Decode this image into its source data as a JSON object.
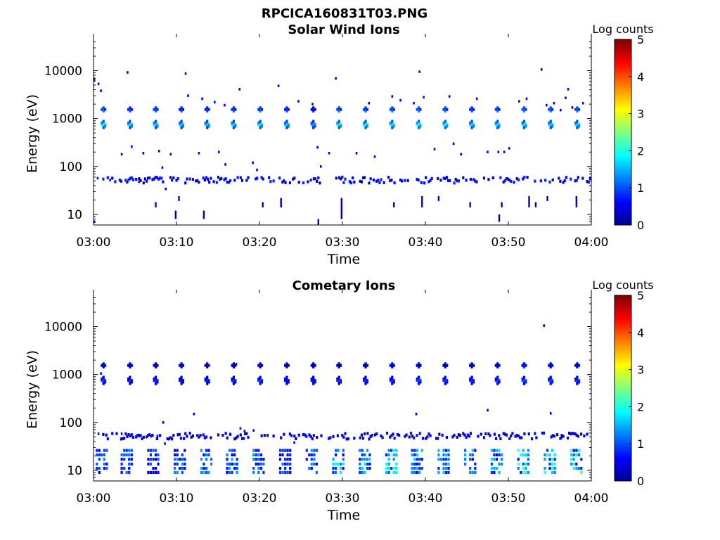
{
  "figure": {
    "title": "RPCICA160831T03.PNG"
  },
  "colorbar": {
    "colors": [
      "#00008f",
      "#0000ff",
      "#0080ff",
      "#00ffff",
      "#80ff80",
      "#ffff00",
      "#ff8000",
      "#ff0000",
      "#800000"
    ]
  },
  "chart_data": [
    {
      "type": "heatmap",
      "title": "Solar Wind Ions",
      "xlabel": "Time",
      "ylabel": "Energy (eV)",
      "x_range": [
        "03:00",
        "04:00"
      ],
      "x_ticks": [
        "03:00",
        "03:10",
        "03:20",
        "03:30",
        "03:40",
        "03:50",
        "04:00"
      ],
      "y_scale": "log",
      "y_range": [
        6,
        45000
      ],
      "y_ticks": [
        10,
        100,
        1000,
        10000
      ],
      "y_tick_labels": [
        "10",
        "100",
        "1000",
        "10000"
      ],
      "colorbar": {
        "label": "Log counts",
        "range": [
          0,
          5
        ],
        "ticks": [
          "0",
          "1",
          "2",
          "3",
          "4",
          "5"
        ]
      },
      "sweeps": [
        {
          "t": 1.2,
          "e750": 2.6,
          "e1500": 1.6
        },
        {
          "t": 4.4,
          "e750": 2.4,
          "e1500": 1.4
        },
        {
          "t": 7.5,
          "e750": 2.4,
          "e1500": 1.5
        },
        {
          "t": 10.6,
          "e750": 2.3,
          "e1500": 1.3
        },
        {
          "t": 13.7,
          "e750": 2.3,
          "e1500": 1.3
        },
        {
          "t": 16.9,
          "e750": 2.4,
          "e1500": 1.4
        },
        {
          "t": 20.1,
          "e750": 2.5,
          "e1500": 1.5
        },
        {
          "t": 23.3,
          "e750": 2.3,
          "e1500": 1.3
        },
        {
          "t": 26.5,
          "e750": 2.0,
          "e1500": 1.0
        },
        {
          "t": 29.6,
          "e750": 2.6,
          "e1500": 1.5
        },
        {
          "t": 32.8,
          "e750": 2.6,
          "e1500": 1.5
        },
        {
          "t": 36.0,
          "e750": 2.6,
          "e1500": 1.6
        },
        {
          "t": 39.2,
          "e750": 2.8,
          "e1500": 1.7
        },
        {
          "t": 42.4,
          "e750": 2.7,
          "e1500": 1.6
        },
        {
          "t": 45.6,
          "e750": 2.4,
          "e1500": 1.4
        },
        {
          "t": 48.7,
          "e750": 2.5,
          "e1500": 1.5
        },
        {
          "t": 51.9,
          "e750": 2.5,
          "e1500": 1.7
        },
        {
          "t": 55.1,
          "e750": 2.4,
          "e1500": 1.6
        },
        {
          "t": 58.3,
          "e750": 2.4,
          "e1500": 1.6
        }
      ],
      "low_energy_band": {
        "energy_ev": [
          45,
          60
        ],
        "log_counts": 0.6,
        "start_min": 1,
        "end_min": 60
      },
      "low_energy_spikes": [
        {
          "t": 7.5,
          "e": [
            14,
            18
          ]
        },
        {
          "t": 9.9,
          "e": [
            8,
            12
          ]
        },
        {
          "t": 10.3,
          "e": [
            19,
            24
          ]
        },
        {
          "t": 13.3,
          "e": [
            8,
            12
          ]
        },
        {
          "t": 20.4,
          "e": [
            14,
            18
          ]
        },
        {
          "t": 22.6,
          "e": [
            14,
            22
          ]
        },
        {
          "t": 27.1,
          "e": [
            6,
            8
          ]
        },
        {
          "t": 29.9,
          "e": [
            8,
            22
          ]
        },
        {
          "t": 36.2,
          "e": [
            14,
            18
          ]
        },
        {
          "t": 39.6,
          "e": [
            14,
            24
          ]
        },
        {
          "t": 41.6,
          "e": [
            19,
            24
          ]
        },
        {
          "t": 45.4,
          "e": [
            14,
            18
          ]
        },
        {
          "t": 48.9,
          "e": [
            7,
            10
          ]
        },
        {
          "t": 49.2,
          "e": [
            14,
            18
          ]
        },
        {
          "t": 52.5,
          "e": [
            14,
            24
          ]
        },
        {
          "t": 53.3,
          "e": [
            14,
            18
          ]
        },
        {
          "t": 54.7,
          "e": [
            19,
            24
          ]
        },
        {
          "t": 58.2,
          "e": [
            14,
            24
          ]
        }
      ],
      "scatter": [
        {
          "t": 0.1,
          "e": 6500
        },
        {
          "t": 0.6,
          "e": 5300
        },
        {
          "t": 0.9,
          "e": 3800
        },
        {
          "t": 0.1,
          "e": 7
        },
        {
          "t": 0.5,
          "e": 57
        },
        {
          "t": 2.0,
          "e": 52
        },
        {
          "t": 3.4,
          "e": 180
        },
        {
          "t": 4.1,
          "e": 9200
        },
        {
          "t": 4.6,
          "e": 260
        },
        {
          "t": 5.5,
          "e": 48
        },
        {
          "t": 6.0,
          "e": 190
        },
        {
          "t": 7.9,
          "e": 210
        },
        {
          "t": 8.3,
          "e": 95
        },
        {
          "t": 8.7,
          "e": 34
        },
        {
          "t": 9.3,
          "e": 180
        },
        {
          "t": 11.1,
          "e": 8700
        },
        {
          "t": 11.4,
          "e": 3000
        },
        {
          "t": 12.7,
          "e": 190
        },
        {
          "t": 13.1,
          "e": 2600
        },
        {
          "t": 14.6,
          "e": 2200
        },
        {
          "t": 15.8,
          "e": 1900
        },
        {
          "t": 15.1,
          "e": 200
        },
        {
          "t": 15.9,
          "e": 110
        },
        {
          "t": 17.6,
          "e": 4100
        },
        {
          "t": 19.2,
          "e": 120
        },
        {
          "t": 19.7,
          "e": 85
        },
        {
          "t": 22.3,
          "e": 4800
        },
        {
          "t": 24.7,
          "e": 2300
        },
        {
          "t": 26.4,
          "e": 2000
        },
        {
          "t": 27.0,
          "e": 250
        },
        {
          "t": 27.4,
          "e": 100
        },
        {
          "t": 28.4,
          "e": 190
        },
        {
          "t": 29.2,
          "e": 6900
        },
        {
          "t": 31.7,
          "e": 190
        },
        {
          "t": 33.2,
          "e": 2100
        },
        {
          "t": 33.9,
          "e": 160
        },
        {
          "t": 36.0,
          "e": 2900
        },
        {
          "t": 37.0,
          "e": 2400
        },
        {
          "t": 38.6,
          "e": 2100
        },
        {
          "t": 39.3,
          "e": 9500
        },
        {
          "t": 39.8,
          "e": 2800
        },
        {
          "t": 41.1,
          "e": 230
        },
        {
          "t": 42.9,
          "e": 2900
        },
        {
          "t": 43.4,
          "e": 300
        },
        {
          "t": 44.3,
          "e": 180
        },
        {
          "t": 46.2,
          "e": 2600
        },
        {
          "t": 47.5,
          "e": 200
        },
        {
          "t": 48.8,
          "e": 200
        },
        {
          "t": 49.5,
          "e": 200
        },
        {
          "t": 50.1,
          "e": 240
        },
        {
          "t": 51.3,
          "e": 2300
        },
        {
          "t": 52.2,
          "e": 2600
        },
        {
          "t": 54.0,
          "e": 10600
        },
        {
          "t": 54.6,
          "e": 1900
        },
        {
          "t": 55.5,
          "e": 2100
        },
        {
          "t": 56.3,
          "e": 1500
        },
        {
          "t": 56.9,
          "e": 2700
        },
        {
          "t": 57.2,
          "e": 4100
        },
        {
          "t": 57.7,
          "e": 1700
        },
        {
          "t": 59.0,
          "e": 2100
        }
      ]
    },
    {
      "type": "heatmap",
      "title": "Cometary Ions",
      "xlabel": "Time",
      "ylabel": "Energy (eV)",
      "x_range": [
        "03:00",
        "04:00"
      ],
      "x_ticks": [
        "03:00",
        "03:10",
        "03:20",
        "03:30",
        "03:40",
        "03:50",
        "04:00"
      ],
      "y_scale": "log",
      "y_range": [
        6,
        45000
      ],
      "y_ticks": [
        10,
        100,
        1000,
        10000
      ],
      "y_tick_labels": [
        "10",
        "100",
        "1000",
        "10000"
      ],
      "colorbar": {
        "label": "Log counts",
        "range": [
          0,
          5
        ],
        "ticks": [
          "0",
          "1",
          "2",
          "3",
          "4",
          "5"
        ]
      },
      "sweeps": [
        {
          "t": 1.2,
          "e750": 1.3,
          "e1500": 0.6
        },
        {
          "t": 4.4,
          "e750": 1.1,
          "e1500": 0.5
        },
        {
          "t": 7.5,
          "e750": 1.2,
          "e1500": 0.5
        },
        {
          "t": 10.6,
          "e750": 1.0,
          "e1500": 0.8
        },
        {
          "t": 13.7,
          "e750": 1.1,
          "e1500": 0.6
        },
        {
          "t": 16.9,
          "e750": 1.2,
          "e1500": 0.6
        },
        {
          "t": 20.1,
          "e750": 1.3,
          "e1500": 0.7
        },
        {
          "t": 23.3,
          "e750": 1.0,
          "e1500": 0.4
        },
        {
          "t": 26.5,
          "e750": 1.0,
          "e1500": 0.4
        },
        {
          "t": 29.6,
          "e750": 1.2,
          "e1500": 0.4
        },
        {
          "t": 32.8,
          "e750": 1.2,
          "e1500": 0.4
        },
        {
          "t": 36.0,
          "e750": 1.2,
          "e1500": 0.8
        },
        {
          "t": 39.2,
          "e750": 1.4,
          "e1500": 0.7
        },
        {
          "t": 42.4,
          "e750": 1.3,
          "e1500": 0.4
        },
        {
          "t": 45.6,
          "e750": 1.2,
          "e1500": 0.4
        },
        {
          "t": 48.7,
          "e750": 1.3,
          "e1500": 0.5
        },
        {
          "t": 51.9,
          "e750": 1.5,
          "e1500": 1.1
        },
        {
          "t": 55.1,
          "e750": 1.4,
          "e1500": 0.8
        },
        {
          "t": 58.3,
          "e750": 1.3,
          "e1500": 0.7
        }
      ],
      "low_energy_band": {
        "energy_ev": [
          45,
          60
        ],
        "log_counts": 0.5,
        "start_min": 1,
        "end_min": 60
      },
      "low_energy_blocks": [
        {
          "t": 1.0,
          "level": 1.0
        },
        {
          "t": 4.0,
          "level": 1.1
        },
        {
          "t": 7.2,
          "level": 0.9
        },
        {
          "t": 10.4,
          "level": 1.2
        },
        {
          "t": 13.6,
          "level": 1.3
        },
        {
          "t": 16.7,
          "level": 1.2
        },
        {
          "t": 19.9,
          "level": 1.1
        },
        {
          "t": 23.1,
          "level": 1.0
        },
        {
          "t": 26.3,
          "level": 1.2
        },
        {
          "t": 29.5,
          "level": 1.6
        },
        {
          "t": 32.7,
          "level": 1.5
        },
        {
          "t": 35.9,
          "level": 1.8
        },
        {
          "t": 39.0,
          "level": 1.4
        },
        {
          "t": 42.2,
          "level": 1.3
        },
        {
          "t": 45.4,
          "level": 1.3
        },
        {
          "t": 48.6,
          "level": 1.4
        },
        {
          "t": 51.8,
          "level": 1.9
        },
        {
          "t": 55.0,
          "level": 1.8
        },
        {
          "t": 58.2,
          "level": 1.7
        }
      ],
      "scatter": [
        {
          "t": 0.6,
          "e": 58
        },
        {
          "t": 0.9,
          "e": 1050
        },
        {
          "t": 3.4,
          "e": 58
        },
        {
          "t": 5.5,
          "e": 52
        },
        {
          "t": 7.7,
          "e": 52
        },
        {
          "t": 8.4,
          "e": 100
        },
        {
          "t": 8.6,
          "e": 36
        },
        {
          "t": 12.1,
          "e": 150
        },
        {
          "t": 17.2,
          "e": 1650
        },
        {
          "t": 17.7,
          "e": 75
        },
        {
          "t": 18.2,
          "e": 66
        },
        {
          "t": 19.3,
          "e": 68
        },
        {
          "t": 24.2,
          "e": 38
        },
        {
          "t": 38.9,
          "e": 150
        },
        {
          "t": 47.5,
          "e": 180
        },
        {
          "t": 54.3,
          "e": 10500
        },
        {
          "t": 55.1,
          "e": 155
        },
        {
          "t": 56.4,
          "e": 48
        }
      ]
    }
  ]
}
